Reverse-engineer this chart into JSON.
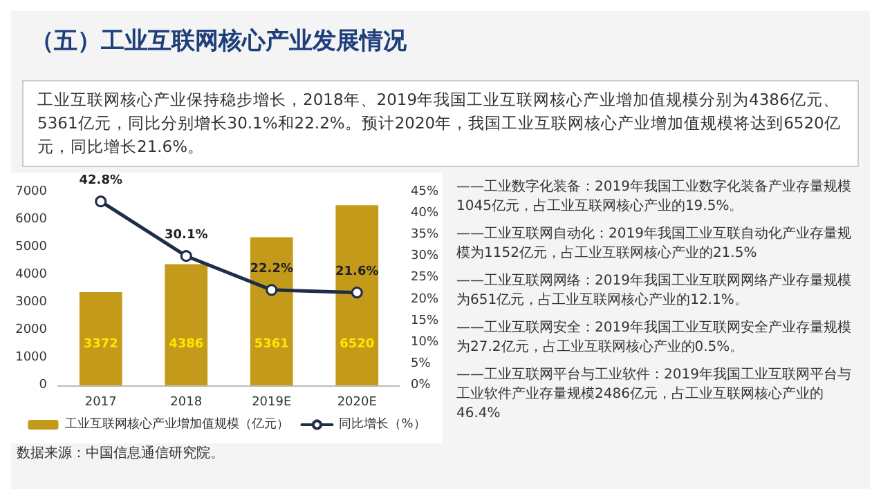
{
  "chart_data": {
    "type": "bar",
    "title": "（五）工业互联网核心产业发展情况",
    "annotations": [
      "工业互联网核心产业保持稳步增长，2018年、2019年我国工业互联网核心产业增加值规模分别为4386亿元、5361亿元，同比分别增长30.1%和22.2%。预计2020年，我国工业互联网核心产业增加值规模将达到6520亿元，同比增长21.6%。",
      "——工业数字化装备：2019年我国工业数字化装备产业存量规模1045亿元，占工业互联网核心产业的19.5%。",
      "——工业互联网自动化：2019年我国工业互联自动化产业存量规模为1152亿元，占工业互联网核心产业的21.5%",
      "——工业互联网网络：2019年我国工业互联网网络产业存量规模为651亿元，占工业互联网核心产业的12.1%。",
      "——工业互联网安全：2019年我国工业互联网安全产业存量规模为27.2亿元，占工业互联网核心产业的0.5%。",
      "——工业互联网平台与工业软件：2019年我国工业互联网平台与工业软件产业存量规模2486亿元，占工业互联网核心产业的46.4%",
      "数据来源：中国信息通信研究院。"
    ],
    "categories": [
      "2017",
      "2018",
      "2019E",
      "2020E"
    ],
    "series": [
      {
        "name": "工业互联网核心产业增加值规模（亿元）",
        "color": "#c49a1a",
        "values": [
          3372,
          4386,
          5361,
          6520
        ]
      },
      {
        "name": "同比增长（%）",
        "type": "line",
        "axis": "y2",
        "color": "#1f2d4a",
        "values": [
          42.8,
          30.1,
          22.2,
          21.6
        ],
        "value_labels": [
          "42.8%",
          "30.1%",
          "22.2%",
          "21.6%"
        ]
      }
    ],
    "ylim": [
      0,
      7000
    ],
    "yticks": [
      0,
      1000,
      2000,
      3000,
      4000,
      5000,
      6000,
      7000
    ],
    "y2lim": [
      0,
      45
    ],
    "y2ticks": [
      {
        "value": 0,
        "label": "0%"
      },
      {
        "value": 5,
        "label": "5%"
      },
      {
        "value": 10,
        "label": "10%"
      },
      {
        "value": 15,
        "label": "15%"
      },
      {
        "value": 20,
        "label": "20%"
      },
      {
        "value": 25,
        "label": "25%"
      },
      {
        "value": 30,
        "label": "30%"
      },
      {
        "value": 35,
        "label": "35%"
      },
      {
        "value": 40,
        "label": "40%"
      },
      {
        "value": 45,
        "label": "45%"
      }
    ],
    "data_labels": true,
    "legend": "bottom",
    "marker": "circle",
    "grid": false
  }
}
